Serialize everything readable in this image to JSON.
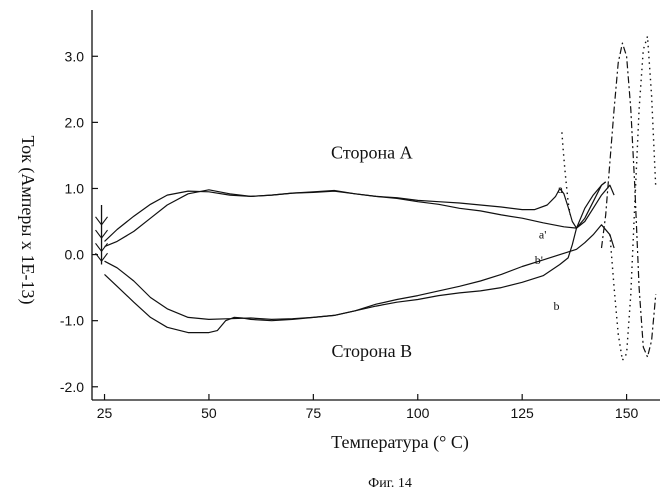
{
  "figure": {
    "caption": "Фиг. 14"
  },
  "chart_data": {
    "type": "line",
    "title": "",
    "xlabel": "Температура (° С)",
    "ylabel": "Ток (Амперы х 1Е-13)",
    "xlim": [
      22,
      158
    ],
    "ylim": [
      -2.2,
      3.7
    ],
    "xticks": [
      25,
      50,
      75,
      100,
      125,
      150
    ],
    "yticks": [
      -2.0,
      -1.0,
      0.0,
      1.0,
      2.0,
      3.0
    ],
    "ytick_labels": [
      "-2.0",
      "-1.0",
      "0.0",
      "1.0",
      "2.0",
      "3.0"
    ],
    "grid": false,
    "annotations": [
      {
        "text": "Сторона А",
        "x": 89,
        "y": 1.45
      },
      {
        "text": "Сторона В",
        "x": 89,
        "y": -1.55
      }
    ],
    "series": [
      {
        "name": "a",
        "label_at": [
          133.5,
          0.93
        ],
        "style": "solid",
        "x": [
          25,
          28,
          32,
          36,
          40,
          45,
          50,
          55,
          60,
          65,
          70,
          75,
          80,
          85,
          90,
          95,
          100,
          105,
          110,
          115,
          120,
          125,
          128,
          131,
          133,
          134,
          135,
          136,
          137,
          138,
          140,
          142,
          144,
          145
        ],
        "y": [
          0.2,
          0.38,
          0.58,
          0.76,
          0.9,
          0.96,
          0.95,
          0.9,
          0.88,
          0.9,
          0.93,
          0.94,
          0.96,
          0.92,
          0.88,
          0.86,
          0.82,
          0.8,
          0.78,
          0.75,
          0.72,
          0.68,
          0.68,
          0.75,
          0.88,
          1.0,
          0.92,
          0.72,
          0.5,
          0.4,
          0.55,
          0.8,
          1.05,
          1.1
        ]
      },
      {
        "name": "a'",
        "label_at": [
          129,
          0.24
        ],
        "style": "solid",
        "x": [
          25,
          28,
          32,
          36,
          40,
          45,
          50,
          55,
          60,
          65,
          70,
          75,
          80,
          85,
          90,
          95,
          100,
          105,
          110,
          115,
          120,
          125,
          130,
          135,
          138,
          140,
          142,
          144,
          146,
          147
        ],
        "y": [
          0.12,
          0.2,
          0.35,
          0.55,
          0.75,
          0.92,
          0.98,
          0.92,
          0.88,
          0.9,
          0.93,
          0.95,
          0.97,
          0.92,
          0.88,
          0.85,
          0.8,
          0.76,
          0.7,
          0.66,
          0.6,
          0.55,
          0.48,
          0.42,
          0.4,
          0.5,
          0.7,
          0.9,
          1.05,
          0.9
        ]
      },
      {
        "name": "b'",
        "label_at": [
          128,
          -0.14
        ],
        "style": "solid",
        "x": [
          25,
          28,
          32,
          36,
          40,
          45,
          50,
          55,
          60,
          65,
          70,
          75,
          80,
          85,
          90,
          95,
          100,
          105,
          110,
          115,
          120,
          125,
          130,
          135,
          138,
          140,
          142,
          144,
          146,
          147
        ],
        "y": [
          -0.1,
          -0.2,
          -0.4,
          -0.65,
          -0.82,
          -0.95,
          -0.98,
          -0.97,
          -0.96,
          -0.98,
          -0.97,
          -0.95,
          -0.92,
          -0.85,
          -0.75,
          -0.68,
          -0.62,
          -0.55,
          -0.48,
          -0.4,
          -0.3,
          -0.18,
          -0.08,
          0.02,
          0.08,
          0.18,
          0.3,
          0.45,
          0.3,
          0.1
        ]
      },
      {
        "name": "b",
        "label_at": [
          132.5,
          -0.84
        ],
        "style": "solid",
        "x": [
          25,
          28,
          32,
          36,
          40,
          45,
          50,
          52,
          54,
          56,
          58,
          60,
          65,
          70,
          75,
          80,
          85,
          90,
          95,
          100,
          105,
          110,
          115,
          120,
          125,
          130,
          134,
          136,
          137,
          138,
          140,
          142,
          144,
          145
        ],
        "y": [
          -0.3,
          -0.48,
          -0.72,
          -0.95,
          -1.1,
          -1.18,
          -1.18,
          -1.15,
          -1.0,
          -0.95,
          -0.96,
          -0.98,
          -1.0,
          -0.98,
          -0.95,
          -0.92,
          -0.85,
          -0.78,
          -0.72,
          -0.68,
          -0.62,
          -0.58,
          -0.55,
          -0.5,
          -0.42,
          -0.32,
          -0.15,
          -0.05,
          0.15,
          0.4,
          0.7,
          0.9,
          1.05,
          1.1
        ]
      },
      {
        "name": "",
        "style": "dashdot",
        "x": [
          144,
          145,
          146,
          147,
          148,
          149,
          150,
          151,
          152,
          153,
          154,
          155,
          156,
          157
        ],
        "y": [
          0.1,
          0.6,
          1.4,
          2.2,
          2.9,
          3.2,
          3.0,
          2.2,
          1.0,
          -0.5,
          -1.4,
          -1.55,
          -1.3,
          -0.6
        ]
      },
      {
        "name": "",
        "style": "dotted",
        "x": [
          146,
          147,
          148,
          149,
          150,
          151,
          152,
          153,
          154,
          155,
          156,
          157
        ],
        "y": [
          0.3,
          -0.5,
          -1.2,
          -1.6,
          -1.5,
          -0.6,
          0.8,
          2.2,
          3.1,
          3.3,
          2.4,
          1.0
        ]
      },
      {
        "name": "",
        "style": "dotted",
        "x": [
          134.5,
          134.8,
          135.2,
          135.6,
          136,
          136.5
        ],
        "y": [
          1.85,
          1.6,
          1.3,
          1.05,
          0.8,
          0.6
        ]
      }
    ],
    "start_marker": {
      "x": 25,
      "y_top": 0.75,
      "y_bottom": -0.15
    }
  }
}
